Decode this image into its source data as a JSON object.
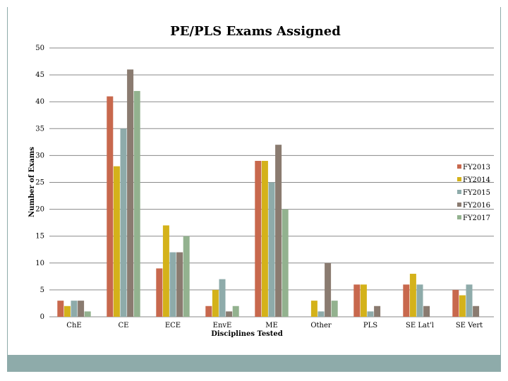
{
  "chart_data": {
    "type": "bar",
    "title": "PE/PLS Exams Assigned",
    "xlabel": "Disciplines Tested",
    "ylabel": "Number of Exams",
    "ylim": [
      0,
      50
    ],
    "yticks": [
      0,
      5,
      10,
      15,
      20,
      25,
      30,
      35,
      40,
      45,
      50
    ],
    "grid": true,
    "legend_position": "right",
    "categories": [
      "ChE",
      "CE",
      "ECE",
      "EnvE",
      "ME",
      "Other",
      "PLS",
      "SE Lat'l",
      "SE Vert"
    ],
    "series": [
      {
        "name": "FY2013",
        "color": "#c8684d",
        "values": [
          3,
          41,
          9,
          2,
          29,
          0,
          6,
          6,
          5
        ]
      },
      {
        "name": "FY2014",
        "color": "#d4b21a",
        "values": [
          2,
          28,
          17,
          5,
          29,
          3,
          6,
          8,
          4
        ]
      },
      {
        "name": "FY2015",
        "color": "#8eabaa",
        "values": [
          3,
          35,
          12,
          7,
          25,
          1,
          1,
          6,
          6
        ]
      },
      {
        "name": "FY2016",
        "color": "#8a7b70",
        "values": [
          3,
          46,
          12,
          1,
          32,
          10,
          2,
          2,
          2
        ]
      },
      {
        "name": "FY2017",
        "color": "#93b28f",
        "values": [
          1,
          42,
          15,
          2,
          20,
          3,
          0,
          0,
          0
        ]
      }
    ]
  },
  "colors": {
    "frame": "#8eabaa",
    "footer": "#8eabaa",
    "grid": "#8a8a8a"
  }
}
